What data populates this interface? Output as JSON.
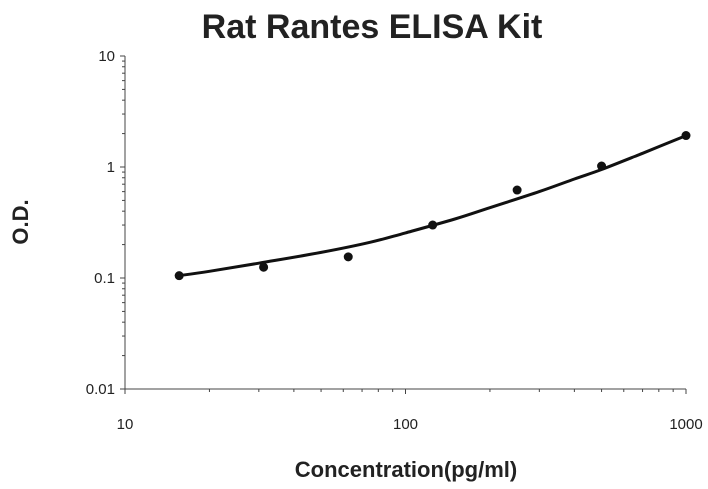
{
  "chart_data": {
    "type": "scatter",
    "title": "Rat Rantes ELISA Kit",
    "xlabel": "Concentration(pg/ml)",
    "ylabel": "O.D.",
    "xscale": "log",
    "yscale": "log",
    "xlim": [
      10,
      1000
    ],
    "ylim": [
      0.01,
      10
    ],
    "xticks": [
      "10",
      "100",
      "1000"
    ],
    "yticks": [
      "0.01",
      "0.1",
      "1",
      "10"
    ],
    "grid": false,
    "legend": "none",
    "points": [
      {
        "x": 15.6,
        "y": 0.105
      },
      {
        "x": 31.2,
        "y": 0.125
      },
      {
        "x": 62.5,
        "y": 0.155
      },
      {
        "x": 125,
        "y": 0.3
      },
      {
        "x": 250,
        "y": 0.62
      },
      {
        "x": 500,
        "y": 1.02
      },
      {
        "x": 1000,
        "y": 1.92
      }
    ],
    "fit_curve": [
      {
        "x": 15.6,
        "y": 0.105
      },
      {
        "x": 20,
        "y": 0.115
      },
      {
        "x": 30,
        "y": 0.136
      },
      {
        "x": 50,
        "y": 0.17
      },
      {
        "x": 75,
        "y": 0.21
      },
      {
        "x": 100,
        "y": 0.255
      },
      {
        "x": 150,
        "y": 0.34
      },
      {
        "x": 200,
        "y": 0.43
      },
      {
        "x": 300,
        "y": 0.6
      },
      {
        "x": 400,
        "y": 0.78
      },
      {
        "x": 500,
        "y": 0.95
      },
      {
        "x": 700,
        "y": 1.33
      },
      {
        "x": 1000,
        "y": 1.92
      }
    ],
    "colors": {
      "marks": "#111111",
      "axis": "#444444",
      "text": "#222222"
    }
  }
}
